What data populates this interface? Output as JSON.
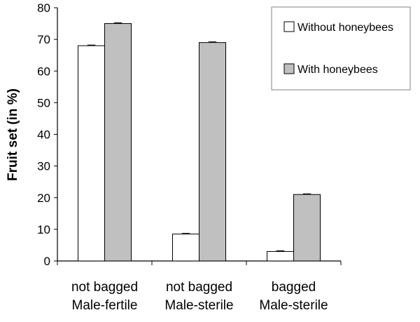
{
  "chart_data": {
    "type": "bar",
    "title": "",
    "ylabel": "Fruit set (in %)",
    "xlabel": "",
    "ylim": [
      0,
      80
    ],
    "yticks": [
      0,
      10,
      20,
      30,
      40,
      50,
      60,
      70,
      80
    ],
    "grid": false,
    "legend_position": "top-right",
    "categories": [
      [
        "not bagged",
        "Male-fertile"
      ],
      [
        "not bagged",
        "Male-sterile"
      ],
      [
        "bagged",
        "Male-sterile"
      ]
    ],
    "series": [
      {
        "name": "Without honeybees",
        "color": "#ffffff",
        "values": [
          68,
          8.5,
          3
        ]
      },
      {
        "name": "With honeybees",
        "color": "#c0c0c0",
        "values": [
          75,
          69,
          21
        ]
      }
    ],
    "error_bars": true
  }
}
